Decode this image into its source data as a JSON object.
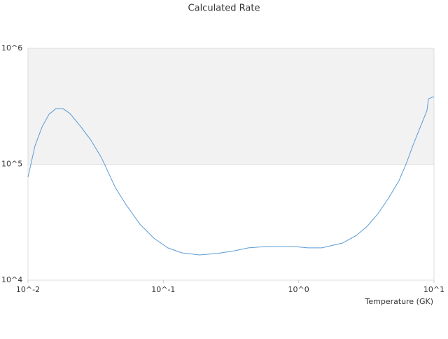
{
  "chart_data": {
    "type": "line",
    "title": "Calculated Rate",
    "x_label": "Temperature (GK)",
    "xscale": "log",
    "yscale": "log",
    "xlim": [
      0.01,
      10
    ],
    "ylim": [
      10000,
      1000000
    ],
    "xticks": [
      {
        "value": 0.01,
        "label": "10^-2"
      },
      {
        "value": 0.1,
        "label": "10^-1"
      },
      {
        "value": 1,
        "label": "10^0"
      },
      {
        "value": 10,
        "label": "10^1"
      }
    ],
    "yticks": [
      {
        "value": 10000,
        "label": "10^4"
      },
      {
        "value": 100000,
        "label": "10^5"
      },
      {
        "value": 1000000,
        "label": "10^6"
      }
    ],
    "series": [
      {
        "color": "#5b9bd5",
        "x": [
          0.01,
          0.01127,
          0.0127,
          0.0143,
          0.0161,
          0.0181,
          0.0204,
          0.0244,
          0.0292,
          0.0349,
          0.0442,
          0.0529,
          0.0671,
          0.0852,
          0.108,
          0.137,
          0.185,
          0.249,
          0.335,
          0.425,
          0.573,
          0.925,
          1.17,
          1.48,
          2.11,
          2.68,
          3.21,
          3.86,
          4.61,
          5.51,
          6.21,
          7.0,
          7.89,
          8.87,
          9.1,
          10
        ],
        "values": [
          77300,
          144500,
          210000,
          270000,
          302000,
          302000,
          274000,
          213000,
          161000,
          114000,
          62800,
          45000,
          30400,
          23000,
          19000,
          17200,
          16500,
          17000,
          17900,
          19000,
          19500,
          19500,
          19000,
          19000,
          20900,
          24400,
          29200,
          37500,
          50900,
          72100,
          100000,
          146000,
          207000,
          290000,
          367000,
          383000
        ]
      }
    ]
  }
}
